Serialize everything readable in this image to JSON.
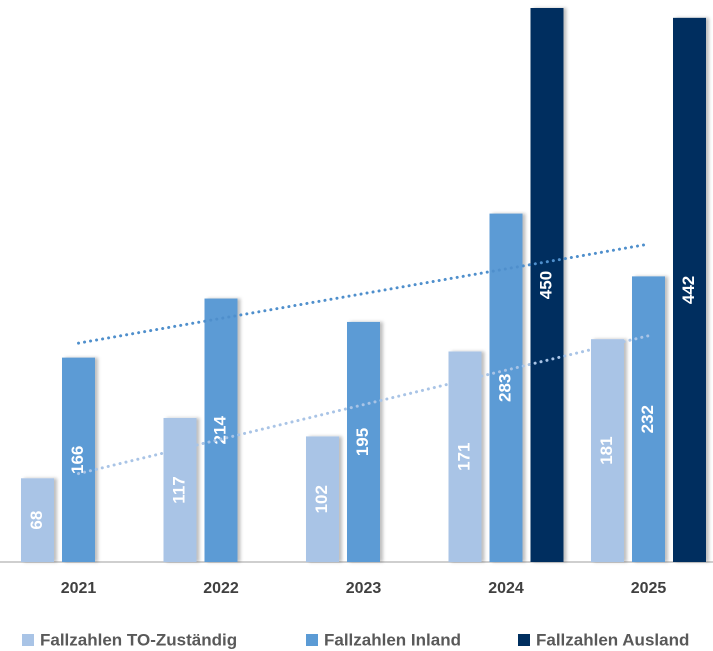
{
  "chart_data": {
    "type": "bar",
    "categories": [
      "2021",
      "2022",
      "2023",
      "2024",
      "2025"
    ],
    "series": [
      {
        "name": "Fallzahlen TO-Zuständig",
        "color": "#a9c4e6",
        "values": [
          68,
          117,
          102,
          171,
          181
        ],
        "trendline": true,
        "trend_color": "#a9c4e6"
      },
      {
        "name": "Fallzahlen Inland",
        "color": "#5b9bd5",
        "values": [
          166,
          214,
          195,
          283,
          232
        ],
        "trendline": true,
        "trend_color": "#4f8fcc"
      },
      {
        "name": "Fallzahlen Ausland",
        "color": "#002f5f",
        "values": [
          null,
          null,
          null,
          450,
          442
        ],
        "trendline": false
      }
    ],
    "ylim": [
      0,
      450
    ],
    "legend": "bottom"
  }
}
